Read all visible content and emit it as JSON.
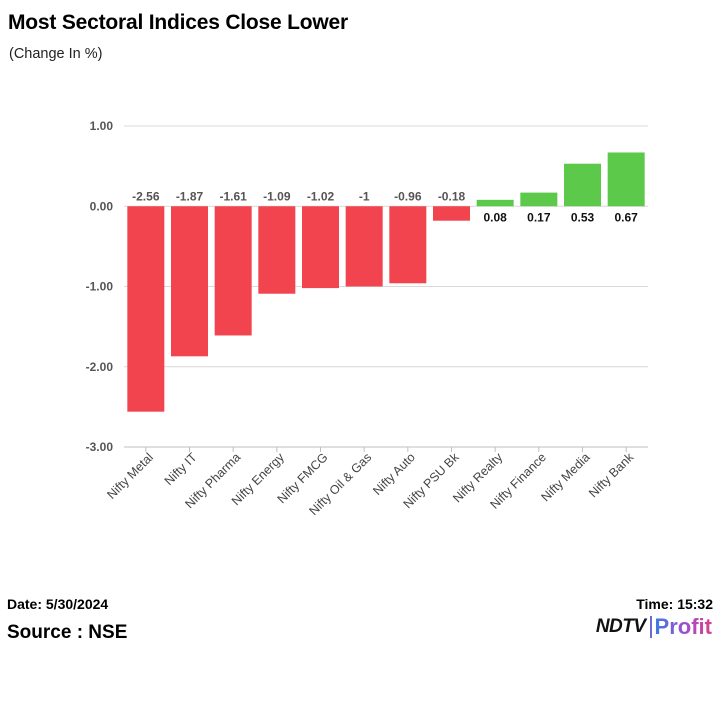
{
  "chart_data": {
    "type": "bar",
    "title": "Most Sectoral Indices Close Lower",
    "subtitle": "(Change In %)",
    "xlabel": "",
    "ylabel": "",
    "ylim": [
      -3.0,
      1.0
    ],
    "yticks": [
      1.0,
      0.0,
      -1.0,
      -2.0,
      -3.0
    ],
    "ytick_labels": [
      "1.00",
      "0.00",
      "-1.00",
      "-2.00",
      "-3.00"
    ],
    "grid": true,
    "categories": [
      "Nifty Metal",
      "Nifty IT",
      "Nifty Pharma",
      "Nifty Energy",
      "Nifty FMCG",
      "Nifty Oil & Gas",
      "Nifty Auto",
      "Nifty PSU Bk",
      "Nifty Realty",
      "Nifty Finance",
      "Nifty Media",
      "Nifty Bank"
    ],
    "values": [
      -2.56,
      -1.87,
      -1.61,
      -1.09,
      -1.02,
      -1,
      -0.96,
      -0.18,
      0.08,
      0.17,
      0.53,
      0.67
    ],
    "value_labels": [
      "-2.56",
      "-1.87",
      "-1.61",
      "-1.09",
      "-1.02",
      "-1",
      "-0.96",
      "-0.18",
      "0.08",
      "0.17",
      "0.53",
      "0.67"
    ],
    "colors": {
      "negative": "#f2444e",
      "positive": "#5cc94a"
    }
  },
  "footer": {
    "date": "Date: 5/30/2024",
    "source": "Source : NSE",
    "time": "Time: 15:32",
    "logo_left": "NDTV",
    "logo_right": "Profit"
  }
}
